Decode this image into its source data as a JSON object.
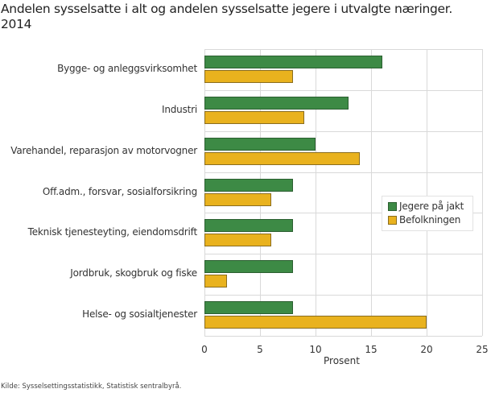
{
  "title": "Andelen sysselsatte i alt og andelen sysselsatte jegere i utvalgte næringer. 2014",
  "title_line1": "Andelen sysselsatte i alt og andelen sysselsatte jegere i utvalgte næringer.",
  "title_line2": "2014",
  "source": "Kilde: Sysselsettingsstatistikk, Statistisk sentralbyrå.",
  "colors": {
    "jegere": "#3d8a45",
    "befolkningen": "#e9b21e",
    "grid": "#d9d9d9"
  },
  "legend": [
    {
      "label": "Jegere på jakt",
      "color": "#3d8a45"
    },
    {
      "label": "Befolkningen",
      "color": "#e9b21e"
    }
  ],
  "xaxis": {
    "label": "Prosent",
    "ticks": [
      "0",
      "5",
      "10",
      "15",
      "20",
      "25"
    ]
  },
  "chart_data": {
    "type": "bar",
    "orientation": "horizontal",
    "title": "Andelen sysselsatte i alt og andelen sysselsatte jegere i utvalgte næringer. 2014",
    "categories": [
      "Bygge- og anleggsvirksomhet",
      "Industri",
      "Varehandel, reparasjon av motorvogner",
      "Off.adm., forsvar, sosialforsikring",
      "Teknisk tjenesteyting, eiendomsdrift",
      "Jordbruk, skogbruk og fiske",
      "Helse- og sosialtjenester"
    ],
    "series": [
      {
        "name": "Jegere på jakt",
        "values": [
          16,
          13,
          10,
          8,
          8,
          8,
          8
        ]
      },
      {
        "name": "Befolkningen",
        "values": [
          8,
          9,
          14,
          6,
          6,
          2,
          20
        ]
      }
    ],
    "xlabel": "Prosent",
    "ylabel": "",
    "xlim": [
      0,
      25
    ],
    "xticks": [
      0,
      5,
      10,
      15,
      20,
      25
    ],
    "grid": true,
    "legend_position": "right-inside"
  }
}
